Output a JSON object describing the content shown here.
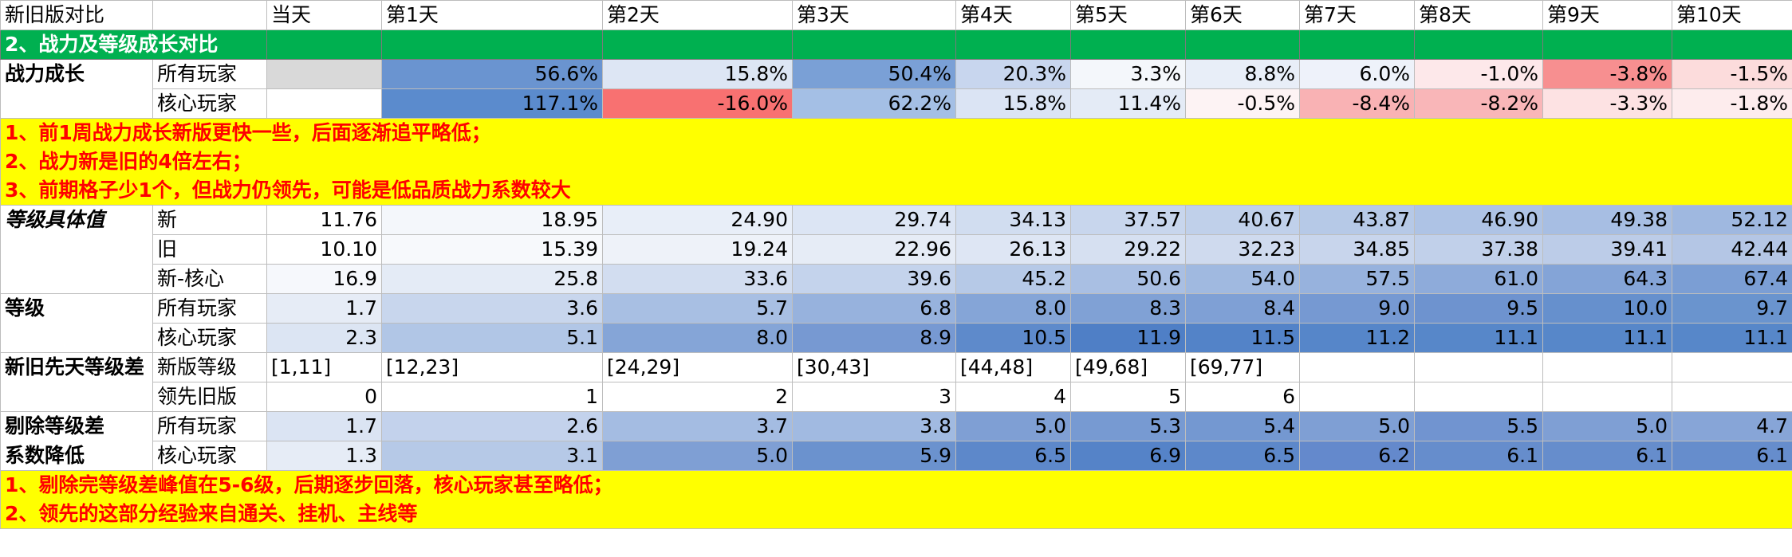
{
  "header": {
    "title": "新旧版对比",
    "days": [
      "当天",
      "第1天",
      "第2天",
      "第3天",
      "第4天",
      "第5天",
      "第6天",
      "第7天",
      "第8天",
      "第9天",
      "第10天"
    ]
  },
  "section2": {
    "title": "2、战力及等级成长对比"
  },
  "power_growth": {
    "label": "战力成长",
    "rows": [
      {
        "sub": "所有玩家",
        "values": [
          "",
          "56.6%",
          "15.8%",
          "50.4%",
          "20.3%",
          "3.3%",
          "8.8%",
          "6.0%",
          "-1.0%",
          "-3.8%",
          "-1.5%"
        ],
        "colors": [
          "#d9d9d9",
          "#6a94d0",
          "#dde6f4",
          "#7aa0d6",
          "#c8d6ee",
          "#f4f7fb",
          "#e8eef8",
          "#eef2fa",
          "#fde8ea",
          "#f78f90",
          "#fcdcdc"
        ]
      },
      {
        "sub": "核心玩家",
        "values": [
          "",
          "117.1%",
          "-16.0%",
          "62.2%",
          "15.8%",
          "11.4%",
          "-0.5%",
          "-8.4%",
          "-8.2%",
          "-3.3%",
          "-1.8%"
        ],
        "colors": [
          "#ffffff",
          "#5b8bcd",
          "#f87171",
          "#a4bfe5",
          "#dbe4f4",
          "#e4ebf6",
          "#fdf3f4",
          "#f9b2b4",
          "#f9b6b8",
          "#fde2e3",
          "#fdeced"
        ]
      }
    ]
  },
  "notes1": [
    "1、前1周战力成长新版更快一些，后面逐渐追平略低；",
    "2、战力新是旧的4倍左右；",
    "3、前期格子少1个，但战力仍领先，可能是低品质战力系数较大"
  ],
  "level_values": {
    "label": "等级具体值",
    "rows": [
      {
        "sub": "新",
        "values": [
          "11.76",
          "18.95",
          "24.90",
          "29.74",
          "34.13",
          "37.57",
          "40.67",
          "43.87",
          "46.90",
          "49.38",
          "52.12"
        ],
        "colors": [
          "#ffffff",
          "#f4f7fb",
          "#e8eef8",
          "#dce5f4",
          "#d1ddf0",
          "#c8d6ed",
          "#c0d0ea",
          "#b6c9e7",
          "#aec3e5",
          "#a7bee3",
          "#9fb8e0"
        ]
      },
      {
        "sub": "旧",
        "values": [
          "10.10",
          "15.39",
          "19.24",
          "22.96",
          "26.13",
          "29.22",
          "32.23",
          "34.85",
          "37.38",
          "39.41",
          "42.44"
        ],
        "colors": [
          "#ffffff",
          "#f7f9fc",
          "#eef2f9",
          "#e6ecf6",
          "#dee6f4",
          "#d6e0f1",
          "#cfdaee",
          "#c8d5ec",
          "#c1d0ea",
          "#bccce8",
          "#b4c6e5"
        ]
      },
      {
        "sub": "新-核心",
        "values": [
          "16.9",
          "25.8",
          "33.6",
          "39.6",
          "45.2",
          "50.6",
          "54.0",
          "57.5",
          "61.0",
          "64.3",
          "67.4"
        ],
        "colors": [
          "#f6f8fc",
          "#e4ebf6",
          "#d2ddf0",
          "#c4d3ec",
          "#b6c9e7",
          "#a9bfe3",
          "#a0b9e0",
          "#97b2dd",
          "#8eabda",
          "#84a4d7",
          "#7b9ed4"
        ]
      }
    ]
  },
  "level": {
    "label": "等级",
    "rows": [
      {
        "sub": "所有玩家",
        "values": [
          "1.7",
          "3.6",
          "5.7",
          "6.8",
          "8.0",
          "8.3",
          "8.4",
          "9.0",
          "9.5",
          "10.0",
          "9.7"
        ],
        "colors": [
          "#e6ecf6",
          "#c8d6ed",
          "#a8bfe3",
          "#97b2dd",
          "#85a5d7",
          "#80a1d5",
          "#7fa0d5",
          "#7699d2",
          "#6e93cf",
          "#6690cd",
          "#6a94ce"
        ]
      },
      {
        "sub": "核心玩家",
        "values": [
          "2.3",
          "5.1",
          "8.0",
          "8.9",
          "10.5",
          "11.9",
          "11.5",
          "11.2",
          "11.1",
          "11.1",
          "11.1"
        ],
        "colors": [
          "#dce5f3",
          "#b1c6e6",
          "#85a5d7",
          "#7799d2",
          "#5e8acb",
          "#4f7fc6",
          "#5383c8",
          "#5686c9",
          "#5787c9",
          "#5787c9",
          "#5787c9"
        ]
      }
    ]
  },
  "innate_gap": {
    "label": "新旧先天等级差",
    "rows": [
      {
        "sub": "新版等级",
        "values": [
          "[1,11]",
          "[12,23]",
          "[24,29]",
          "[30,43]",
          "[44,48]",
          "[49,68]",
          "[69,77]",
          "",
          "",
          "",
          ""
        ]
      },
      {
        "sub": "领先旧版",
        "values": [
          "0",
          "1",
          "2",
          "3",
          "4",
          "5",
          "6",
          "",
          "",
          "",
          ""
        ]
      }
    ]
  },
  "adjusted": {
    "label_line1": "剔除等级差",
    "label_line2": "系数降低",
    "rows": [
      {
        "sub": "所有玩家",
        "values": [
          "1.7",
          "2.6",
          "3.7",
          "3.8",
          "5.0",
          "5.3",
          "5.4",
          "5.0",
          "5.5",
          "5.0",
          "4.7"
        ],
        "colors": [
          "#dbe4f3",
          "#c3d2ec",
          "#a4bce2",
          "#a1bae1",
          "#7f9fd4",
          "#779ad2",
          "#7498d1",
          "#7f9fd4",
          "#7194d0",
          "#7f9fd4",
          "#87a5d7"
        ]
      },
      {
        "sub": "核心玩家",
        "values": [
          "1.3",
          "3.1",
          "5.0",
          "5.9",
          "6.5",
          "6.9",
          "6.5",
          "6.2",
          "6.1",
          "6.1",
          "6.1"
        ],
        "colors": [
          "#e6ecf6",
          "#b6c9e7",
          "#7f9fd4",
          "#6b92ce",
          "#5d88ca",
          "#5583c8",
          "#5d88ca",
          "#6489cc",
          "#668dcc",
          "#668dcc",
          "#668dcc"
        ]
      }
    ]
  },
  "notes2": [
    "1、剔除完等级差峰值在5-6级，后期逐步回落，核心玩家甚至略低；",
    "2、领先的这部分经验来自通关、挂机、主线等"
  ]
}
